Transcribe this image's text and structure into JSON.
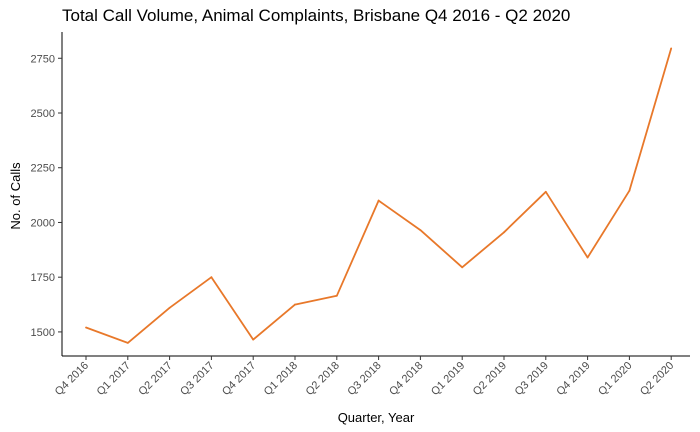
{
  "chart_data": {
    "type": "line",
    "title": "Total Call Volume, Animal Complaints, Brisbane Q4 2016 - Q2 2020",
    "xlabel": "Quarter, Year",
    "ylabel": "No. of Calls",
    "categories": [
      "Q4 2016",
      "Q1 2017",
      "Q2 2017",
      "Q3 2017",
      "Q4 2017",
      "Q1 2018",
      "Q2 2018",
      "Q3 2018",
      "Q4 2018",
      "Q1 2019",
      "Q2 2019",
      "Q3 2019",
      "Q4 2019",
      "Q1 2020",
      "Q2 2020"
    ],
    "values": [
      1520,
      1450,
      1610,
      1750,
      1465,
      1625,
      1665,
      2100,
      1965,
      1795,
      1955,
      2140,
      1840,
      2145,
      2795
    ],
    "yticks": [
      1500,
      1750,
      2000,
      2250,
      2500,
      2750
    ],
    "ytick_labels": [
      "1500",
      "1750",
      "2000",
      "2250",
      "2500",
      "2750"
    ],
    "ylim": [
      1390,
      2870
    ],
    "line_color": "#E8782A",
    "grid": false,
    "legend": "none"
  }
}
